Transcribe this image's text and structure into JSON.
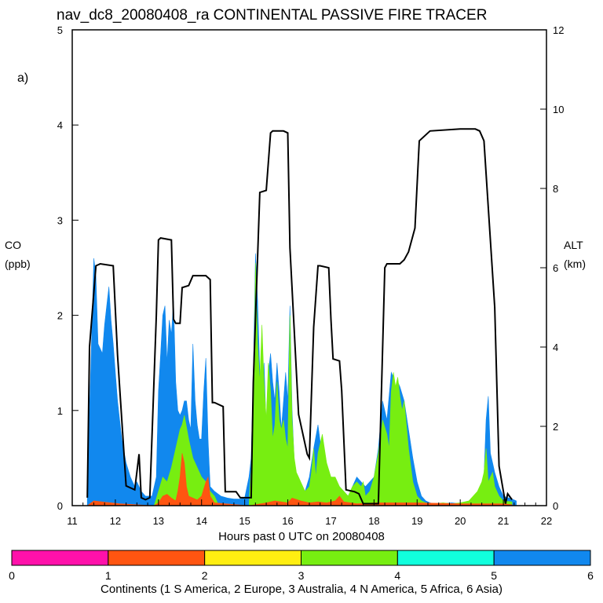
{
  "title": "nav_dc8_20080408_ra CONTINENTAL PASSIVE FIRE TRACER",
  "panel_label": "a)",
  "left_axis": {
    "label": "CO",
    "units": "(ppb)"
  },
  "right_axis": {
    "label": "ALT",
    "units": "(km)"
  },
  "colorbar": {
    "ticks": [
      "0",
      "1",
      "2",
      "3",
      "4",
      "5",
      "6"
    ],
    "title": "Continents (1 S America, 2 Europe, 3 Australia, 4 N America, 5 Africa, 6 Asia)",
    "colors": [
      "#ff11aa",
      "#ff5511",
      "#ffee11",
      "#77ee11",
      "#11ffdd",
      "#1188ee"
    ]
  },
  "chart_data": {
    "type": "area",
    "title": "nav_dc8_20080408_ra CONTINENTAL PASSIVE FIRE TRACER",
    "xlabel": "Hours past 0 UTC on 20080408",
    "ylabel": "CO (ppb)",
    "y2label": "ALT (km)",
    "xlim": [
      11,
      22
    ],
    "ylim": [
      0,
      5
    ],
    "y2lim": [
      0,
      12
    ],
    "xticks": [
      "11",
      "12",
      "13",
      "14",
      "15",
      "16",
      "17",
      "18",
      "19",
      "20",
      "21",
      "22"
    ],
    "yticks": [
      "0",
      "1",
      "2",
      "3",
      "4",
      "5"
    ],
    "y2ticks": [
      "0",
      "2",
      "4",
      "6",
      "8",
      "10",
      "12"
    ],
    "series": [
      {
        "name": "Asia (6) stacked total",
        "color": "#1188ee",
        "x": [
          11.35,
          11.42,
          11.5,
          11.55,
          11.6,
          11.7,
          11.75,
          11.8,
          11.85,
          11.9,
          11.95,
          12.0,
          12.05,
          12.15,
          12.25,
          12.35,
          12.45,
          12.5,
          12.55,
          12.6,
          12.7,
          12.85,
          12.95,
          13.0,
          13.05,
          13.1,
          13.15,
          13.2,
          13.25,
          13.3,
          13.35,
          13.4,
          13.45,
          13.5,
          13.55,
          13.6,
          13.65,
          13.7,
          13.75,
          13.8,
          13.85,
          13.9,
          13.95,
          14.0,
          14.05,
          14.1,
          14.15,
          14.2,
          14.3,
          14.45,
          14.6,
          14.75,
          14.9,
          15.0,
          15.1,
          15.15,
          15.2,
          15.25,
          15.3,
          15.35,
          15.4,
          15.45,
          15.5,
          15.55,
          15.6,
          15.65,
          15.7,
          15.75,
          15.8,
          15.85,
          15.9,
          15.95,
          16.0,
          16.05,
          16.1,
          16.15,
          16.2,
          16.3,
          16.4,
          16.5,
          16.6,
          16.7,
          16.8,
          16.9,
          17.0,
          17.1,
          17.2,
          17.3,
          17.4,
          17.5,
          17.6,
          17.7,
          17.8,
          17.9,
          18.0,
          18.1,
          18.2,
          18.3,
          18.4,
          18.45,
          18.5,
          18.55,
          18.6,
          18.7,
          18.8,
          18.9,
          19.0,
          19.1,
          19.2,
          19.3,
          19.4,
          19.6,
          19.8,
          20.0,
          20.2,
          20.4,
          20.5,
          20.55,
          20.6,
          20.65,
          20.7,
          20.75,
          20.8,
          20.9,
          21.0,
          21.2,
          21.3
        ],
        "values": [
          0.3,
          1.3,
          2.6,
          2.4,
          1.7,
          1.6,
          1.9,
          2.1,
          2.3,
          1.95,
          1.7,
          1.4,
          1.1,
          0.7,
          0.45,
          0.3,
          0.2,
          0.25,
          0.2,
          0.15,
          0.1,
          0.1,
          0.3,
          1.2,
          1.6,
          2.0,
          2.1,
          1.5,
          1.95,
          1.8,
          2.15,
          1.3,
          1.0,
          0.95,
          1.0,
          1.1,
          1.1,
          0.9,
          0.8,
          1.7,
          1.1,
          0.85,
          0.7,
          0.7,
          1.2,
          1.55,
          0.7,
          0.2,
          0.15,
          0.1,
          0.08,
          0.07,
          0.07,
          0.08,
          0.3,
          0.5,
          1.35,
          2.65,
          2.15,
          1.4,
          1.2,
          1.5,
          0.8,
          1.4,
          1.6,
          1.3,
          1.1,
          1.5,
          1.2,
          0.8,
          1.1,
          1.4,
          1.1,
          2.1,
          1.0,
          0.45,
          0.25,
          0.2,
          0.15,
          0.3,
          0.6,
          0.85,
          0.5,
          0.35,
          0.3,
          0.25,
          0.2,
          0.15,
          0.1,
          0.2,
          0.3,
          0.25,
          0.2,
          0.25,
          0.3,
          0.6,
          1.1,
          0.9,
          1.4,
          1.35,
          1.2,
          1.3,
          1.25,
          1.1,
          0.8,
          0.5,
          0.25,
          0.1,
          0.05,
          0.03,
          0.02,
          0.02,
          0.03,
          0.02,
          0.03,
          0.05,
          0.1,
          0.3,
          0.9,
          1.15,
          0.55,
          0.45,
          0.35,
          0.2,
          0.1,
          0.07,
          0.05
        ]
      },
      {
        "name": "N America (4) stacked total",
        "color": "#77ee11",
        "x": [
          11.35,
          12.9,
          13.0,
          13.1,
          13.2,
          13.3,
          13.4,
          13.5,
          13.55,
          13.6,
          13.7,
          13.8,
          13.9,
          14.0,
          14.1,
          14.2,
          14.3,
          14.4,
          15.1,
          15.15,
          15.2,
          15.25,
          15.3,
          15.35,
          15.4,
          15.45,
          15.5,
          15.55,
          15.6,
          15.65,
          15.7,
          15.75,
          15.8,
          15.85,
          15.9,
          15.95,
          16.0,
          16.05,
          16.1,
          16.15,
          16.2,
          16.25,
          16.3,
          16.4,
          16.5,
          16.55,
          16.6,
          16.65,
          16.7,
          16.8,
          16.9,
          17.0,
          17.1,
          17.2,
          17.3,
          17.4,
          17.5,
          17.6,
          17.7,
          17.75,
          17.8,
          17.9,
          18.0,
          18.1,
          18.2,
          18.3,
          18.35,
          18.4,
          18.45,
          18.5,
          18.55,
          18.6,
          18.65,
          18.7,
          18.8,
          18.9,
          19.0,
          19.1,
          19.2,
          19.3,
          19.4,
          19.6,
          19.8,
          20.0,
          20.2,
          20.4,
          20.5,
          20.55,
          20.6,
          20.65,
          20.7,
          20.75,
          20.8,
          20.9,
          21.0,
          21.2
        ],
        "values": [
          0.0,
          0.0,
          0.15,
          0.3,
          0.25,
          0.4,
          0.6,
          0.8,
          0.85,
          0.95,
          0.7,
          0.5,
          0.4,
          0.3,
          0.25,
          0.15,
          0.1,
          0.0,
          0.0,
          0.4,
          0.9,
          2.55,
          1.7,
          1.3,
          1.9,
          1.3,
          0.9,
          1.5,
          1.2,
          0.7,
          0.85,
          1.3,
          0.9,
          0.8,
          0.9,
          0.7,
          0.6,
          2.0,
          0.9,
          0.5,
          0.35,
          0.3,
          0.25,
          0.15,
          0.2,
          0.35,
          0.6,
          0.3,
          0.55,
          0.75,
          0.45,
          0.3,
          0.3,
          0.2,
          0.15,
          0.1,
          0.2,
          0.25,
          0.2,
          0.25,
          0.1,
          0.15,
          0.3,
          0.55,
          0.9,
          0.75,
          0.6,
          1.2,
          1.4,
          1.25,
          1.35,
          1.15,
          1.0,
          1.1,
          0.6,
          0.25,
          0.1,
          0.05,
          0.03,
          0.02,
          0.02,
          0.03,
          0.02,
          0.03,
          0.05,
          0.15,
          0.25,
          0.35,
          0.6,
          0.25,
          0.3,
          0.35,
          0.2,
          0.1,
          0.05,
          0.04
        ]
      },
      {
        "name": "Europe (2) stacked total",
        "color": "#ff5511",
        "x": [
          11.35,
          11.5,
          11.7,
          11.9,
          12.1,
          12.9,
          13.0,
          13.1,
          13.2,
          13.3,
          13.4,
          13.45,
          13.5,
          13.55,
          13.6,
          13.65,
          13.7,
          13.8,
          13.9,
          14.0,
          14.1,
          14.15,
          14.2,
          14.3,
          15.1,
          15.5,
          15.7,
          16.0,
          16.1,
          16.3,
          16.5,
          16.7,
          16.9,
          17.1,
          17.2,
          17.3,
          17.6,
          18.0,
          19.0,
          20.0,
          21.0,
          21.2
        ],
        "values": [
          0.0,
          0.05,
          0.04,
          0.03,
          0.02,
          0.0,
          0.03,
          0.1,
          0.12,
          0.08,
          0.05,
          0.15,
          0.3,
          0.55,
          0.45,
          0.2,
          0.1,
          0.08,
          0.06,
          0.1,
          0.25,
          0.3,
          0.1,
          0.03,
          0.0,
          0.03,
          0.05,
          0.03,
          0.08,
          0.05,
          0.03,
          0.04,
          0.03,
          0.05,
          0.1,
          0.04,
          0.02,
          0.03,
          0.03,
          0.02,
          0.02,
          0.01
        ]
      }
    ],
    "altitude": {
      "name": "ALT (km)",
      "color": "#000000",
      "x": [
        11.35,
        11.4,
        11.55,
        11.65,
        11.95,
        12.05,
        12.25,
        12.45,
        12.55,
        12.6,
        12.7,
        12.8,
        12.95,
        13.0,
        13.05,
        13.3,
        13.35,
        13.4,
        13.5,
        13.55,
        13.7,
        13.8,
        14.1,
        14.2,
        14.25,
        14.3,
        14.5,
        14.55,
        14.8,
        14.9,
        15.15,
        15.2,
        15.35,
        15.5,
        15.6,
        15.65,
        15.9,
        16.0,
        16.05,
        16.25,
        16.45,
        16.5,
        16.6,
        16.7,
        16.75,
        16.95,
        17.0,
        17.05,
        17.2,
        17.25,
        17.35,
        17.55,
        17.65,
        17.75,
        18.1,
        18.15,
        18.25,
        18.3,
        18.6,
        18.7,
        18.8,
        18.95,
        19.05,
        19.3,
        20.0,
        20.35,
        20.45,
        20.55,
        20.8,
        20.9,
        21.05,
        21.1,
        21.2
      ],
      "values": [
        0.2,
        4.0,
        6.05,
        6.1,
        6.05,
        3.8,
        0.5,
        0.4,
        1.3,
        0.2,
        0.15,
        0.2,
        4.8,
        6.7,
        6.75,
        6.7,
        4.7,
        4.6,
        4.6,
        5.5,
        5.55,
        5.8,
        5.8,
        5.7,
        2.6,
        2.6,
        2.5,
        0.35,
        0.35,
        0.2,
        0.2,
        3.1,
        7.9,
        7.95,
        9.4,
        9.45,
        9.45,
        9.4,
        6.5,
        2.3,
        1.3,
        1.2,
        4.5,
        6.05,
        6.05,
        6.0,
        4.7,
        3.7,
        3.65,
        2.9,
        0.4,
        0.35,
        0.3,
        0.05,
        0.05,
        2.0,
        6.0,
        6.1,
        6.1,
        6.2,
        6.4,
        7.0,
        9.2,
        9.45,
        9.5,
        9.5,
        9.45,
        9.2,
        5.0,
        1.0,
        0.05,
        0.3,
        0.15
      ]
    }
  }
}
